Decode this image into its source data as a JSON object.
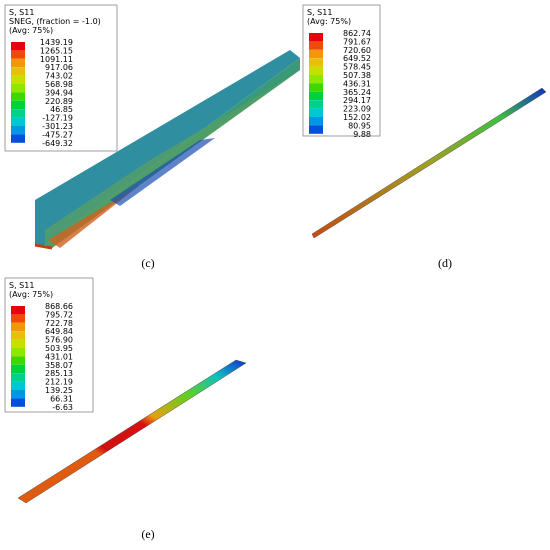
{
  "panels": [
    {
      "caption": "(c)",
      "legend": {
        "lines": [
          "S, S11",
          "SNEG, (fraction = -1.0)",
          "(Avg: 75%)"
        ],
        "values": [
          "1439.19",
          "1265.15",
          "1091.11",
          "917.06",
          "743.02",
          "568.98",
          "394.94",
          "220.89",
          "46.85",
          "-127.19",
          "-301.23",
          "-475.27",
          "-649.32"
        ]
      }
    },
    {
      "caption": "(d)",
      "legend": {
        "lines": [
          "S, S11",
          "(Avg: 75%)"
        ],
        "values": [
          "862.74",
          "791.67",
          "720.60",
          "649.52",
          "578.45",
          "507.38",
          "436.31",
          "365.24",
          "294.17",
          "223.09",
          "152.02",
          "80.95",
          "9.88"
        ]
      }
    },
    {
      "caption": "(e)",
      "legend": {
        "lines": [
          "S, S11",
          "(Avg: 75%)"
        ],
        "values": [
          "868.66",
          "795.72",
          "722.78",
          "649.84",
          "576.90",
          "503.95",
          "431.01",
          "358.07",
          "285.13",
          "212.19",
          "139.25",
          "66.31",
          "-6.63"
        ]
      }
    }
  ],
  "legend_colors": [
    "#e8000b",
    "#f04a0a",
    "#f5960a",
    "#e6c00b",
    "#c8e000",
    "#8ce800",
    "#3cd800",
    "#00d23c",
    "#00d28c",
    "#00c8d2",
    "#0096e6",
    "#0050dc",
    "#0000c8"
  ]
}
